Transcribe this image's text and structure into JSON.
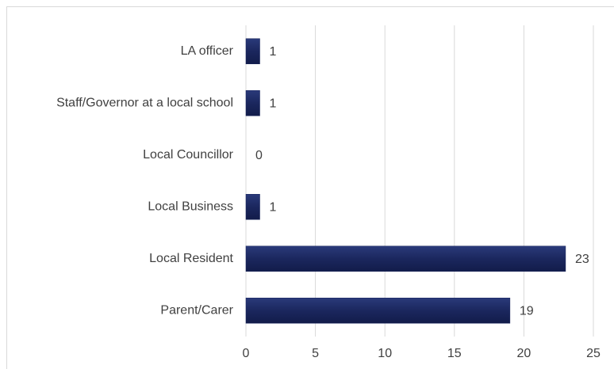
{
  "chart_data": {
    "type": "bar",
    "orientation": "horizontal",
    "categories": [
      "LA officer",
      "Staff/Governor at a local school",
      "Local Councillor",
      "Local Business",
      "Local Resident",
      "Parent/Carer"
    ],
    "values": [
      1,
      1,
      0,
      1,
      23,
      19
    ],
    "color": "#1b275e",
    "xlim": [
      0,
      25
    ],
    "xticks": [
      0,
      5,
      10,
      15,
      20,
      25
    ],
    "grid": true
  }
}
